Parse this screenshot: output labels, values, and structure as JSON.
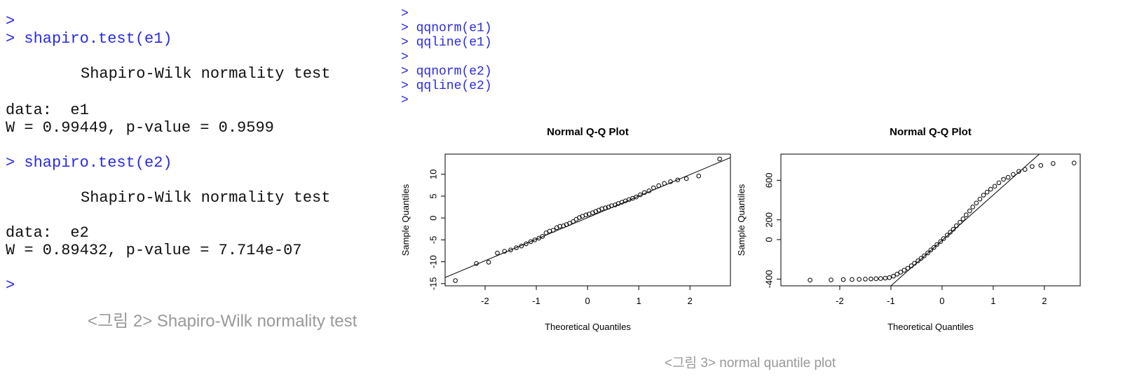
{
  "left_console": {
    "lines": [
      ">",
      "> shapiro.test(e1)",
      "Shapiro-Wilk normality test",
      "data:  e1",
      "W = 0.99449, p-value = 0.9599",
      "> shapiro.test(e2)",
      "Shapiro-Wilk normality test",
      "data:  e2",
      "W = 0.89432, p-value = 7.714e-07",
      ">"
    ]
  },
  "left_caption": "<그림 2> Shapiro-Wilk normality test",
  "right_console": {
    "lines": [
      ">",
      "> qqnorm(e1)",
      "> qqline(e1)",
      ">",
      "> qqnorm(e2)",
      "> qqline(e2)",
      ">"
    ]
  },
  "right_caption": "<그림 3> normal quantile plot",
  "chart_data": [
    {
      "type": "scatter",
      "title": "Normal Q-Q Plot",
      "x_label": "Theoretical Quantiles",
      "y_label": "Sample Quantiles",
      "xlim": [
        -2.78,
        2.79
      ],
      "ylim": [
        -15.5,
        14.6
      ],
      "xticks": [
        -2,
        -1,
        0,
        1,
        2
      ],
      "yticks": [
        -15,
        -10,
        -5,
        0,
        5,
        10
      ],
      "color": "#000000",
      "x": [
        -2.58,
        -2.17,
        -1.93,
        -1.76,
        -1.62,
        -1.5,
        -1.39,
        -1.29,
        -1.2,
        -1.11,
        -1.03,
        -0.95,
        -0.88,
        -0.81,
        -0.74,
        -0.67,
        -0.6,
        -0.54,
        -0.47,
        -0.41,
        -0.35,
        -0.28,
        -0.22,
        -0.16,
        -0.1,
        -0.03,
        0.03,
        0.1,
        0.16,
        0.22,
        0.28,
        0.35,
        0.41,
        0.47,
        0.54,
        0.6,
        0.67,
        0.74,
        0.81,
        0.88,
        0.95,
        1.03,
        1.11,
        1.2,
        1.29,
        1.39,
        1.5,
        1.62,
        1.76,
        1.93,
        2.17,
        2.58
      ],
      "values": [
        -14.3,
        -10.4,
        -10.1,
        -8,
        -7.6,
        -7.3,
        -6.8,
        -6.4,
        -5.9,
        -5.4,
        -5,
        -4.6,
        -4.2,
        -3.4,
        -3,
        -2.8,
        -2.2,
        -1.9,
        -1.8,
        -1.5,
        -1.2,
        -0.8,
        -0.3,
        0.1,
        0.4,
        0.7,
        0.9,
        1.2,
        1.5,
        1.8,
        2.1,
        2.3,
        2.5,
        2.8,
        3,
        3.3,
        3.6,
        3.9,
        4.2,
        4.5,
        4.8,
        5.3,
        5.8,
        6.2,
        6.9,
        7.4,
        7.9,
        8.3,
        8.7,
        9,
        9.6,
        13.5
      ],
      "reference_line": {
        "x": [
          -2.78,
          2.79
        ],
        "y": [
          -13.6,
          13.8
        ]
      }
    },
    {
      "type": "scatter",
      "title": "Normal Q-Q Plot",
      "x_label": "Theoretical Quantiles",
      "y_label": "Sample Quantiles",
      "xlim": [
        -3.15,
        2.7
      ],
      "ylim": [
        -468,
        865
      ],
      "xticks": [
        -2,
        -1,
        0,
        1,
        2
      ],
      "yticks": [
        -400,
        0,
        200,
        600
      ],
      "color": "#000000",
      "x": [
        -2.58,
        -2.17,
        -1.93,
        -1.76,
        -1.62,
        -1.5,
        -1.39,
        -1.29,
        -1.2,
        -1.11,
        -1.03,
        -0.95,
        -0.88,
        -0.81,
        -0.74,
        -0.67,
        -0.6,
        -0.54,
        -0.47,
        -0.41,
        -0.35,
        -0.28,
        -0.22,
        -0.16,
        -0.1,
        -0.03,
        0.03,
        0.1,
        0.16,
        0.22,
        0.28,
        0.35,
        0.41,
        0.47,
        0.54,
        0.6,
        0.67,
        0.74,
        0.81,
        0.88,
        0.95,
        1.03,
        1.11,
        1.2,
        1.29,
        1.39,
        1.5,
        1.62,
        1.76,
        1.93,
        2.17,
        2.58
      ],
      "values": [
        -410,
        -408,
        -405,
        -404,
        -402,
        -400,
        -398,
        -396,
        -394,
        -390,
        -385,
        -370,
        -350,
        -330,
        -310,
        -290,
        -265,
        -240,
        -215,
        -190,
        -165,
        -135,
        -105,
        -80,
        -50,
        -20,
        10,
        45,
        75,
        105,
        140,
        175,
        210,
        250,
        290,
        330,
        370,
        410,
        450,
        480,
        510,
        540,
        575,
        610,
        630,
        660,
        690,
        710,
        740,
        750,
        770,
        775
      ],
      "reference_line": {
        "x": [
          -1.0,
          1.9
        ],
        "y": [
          -468,
          865
        ]
      }
    }
  ]
}
